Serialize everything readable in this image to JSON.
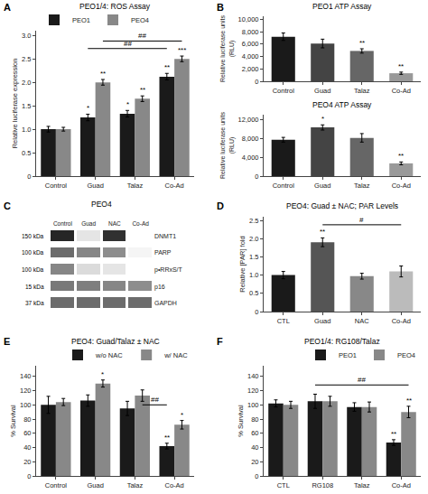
{
  "chart_data": [
    {
      "type": "bar",
      "panel_label": "A",
      "title": "PEO1/4: ROS Assay",
      "categories": [
        "Control",
        "Guad",
        "Talaz",
        "Co-Ad"
      ],
      "series": [
        {
          "name": "PEO1",
          "color": "#1a1a1a",
          "values": [
            1.0,
            1.25,
            1.33,
            2.12
          ],
          "errors": [
            0.06,
            0.07,
            0.07,
            0.07
          ]
        },
        {
          "name": "PEO4",
          "color": "#888888",
          "values": [
            1.0,
            2.0,
            1.65,
            2.5
          ],
          "errors": [
            0.04,
            0.06,
            0.06,
            0.06
          ]
        }
      ],
      "ylabel": "Relative luciferase expression",
      "ylim": [
        0,
        3.1
      ],
      "yticks": [
        0,
        0.5,
        {
          "value": 1.0,
          "label": "1.0"
        },
        1.5,
        {
          "value": 2.0,
          "label": "2.0"
        },
        2.5,
        {
          "value": 3.0,
          "label": "3.0"
        }
      ],
      "grid": false,
      "legend": "upper left",
      "annotations": [
        {
          "text": "*",
          "category": "Guad",
          "series": "PEO1"
        },
        {
          "text": "*",
          "category": "Talaz",
          "series": "PEO1"
        },
        {
          "text": "**",
          "category": "Co-Ad",
          "series": "PEO1"
        },
        {
          "text": "**",
          "category": "Guad",
          "series": "PEO4"
        },
        {
          "text": "**",
          "category": "Talaz",
          "series": "PEO4"
        },
        {
          "text": "***",
          "category": "Co-Ad",
          "series": "PEO4"
        },
        {
          "text": "##",
          "y": 2.72,
          "from": {
            "category": "Guad",
            "series": "PEO1"
          },
          "to": {
            "category": "Co-Ad",
            "series": "PEO1"
          }
        },
        {
          "text": "##",
          "y": 2.88,
          "from": {
            "category": "Guad",
            "series": "PEO4"
          },
          "to": {
            "category": "Co-Ad",
            "series": "PEO4"
          }
        }
      ]
    },
    {
      "type": "bar",
      "panel_label": "B",
      "title": "PEO1 ATP Assay",
      "categories": [
        "Control",
        "Guad",
        "Talaz",
        "Co-Ad"
      ],
      "values": [
        7200,
        6100,
        4900,
        1300
      ],
      "errors": [
        600,
        700,
        350,
        180
      ],
      "colors": [
        "#1a1a1a",
        "#444444",
        "#666666",
        "#999999"
      ],
      "ylabel": "Relative luciferase units\n(RLU)",
      "ylim": [
        0,
        10500
      ],
      "yticks": [
        0,
        {
          "value": 2000,
          "label": "2,000"
        },
        {
          "value": 4000,
          "label": "4,000"
        },
        {
          "value": 6000,
          "label": "6,000"
        },
        {
          "value": 8000,
          "label": "8,000"
        },
        {
          "value": 10000,
          "label": "10,000"
        }
      ],
      "grid": false,
      "annotations": [
        {
          "text": "**",
          "category": "Talaz"
        },
        {
          "text": "**",
          "category": "Co-Ad"
        }
      ]
    },
    {
      "type": "bar",
      "title": "PEO4 ATP Assay",
      "categories": [
        "Control",
        "Guad",
        "Talaz",
        "Co-Ad"
      ],
      "values": [
        7700,
        10300,
        8100,
        2700
      ],
      "errors": [
        500,
        550,
        900,
        300
      ],
      "colors": [
        "#1a1a1a",
        "#444444",
        "#666666",
        "#999999"
      ],
      "ylabel": "Relative luciferase units\n(RLU)",
      "ylim": [
        0,
        13000
      ],
      "yticks": [
        0,
        {
          "value": 4000,
          "label": "4,000"
        },
        {
          "value": 8000,
          "label": "8,000"
        },
        {
          "value": 12000,
          "label": "12,000"
        }
      ],
      "grid": false,
      "annotations": [
        {
          "text": "*",
          "category": "Guad"
        },
        {
          "text": "**",
          "category": "Co-Ad"
        }
      ]
    },
    {
      "type": "heatmap",
      "panel_label": "C",
      "title": "PEO4",
      "x": [
        "Control",
        "Guad",
        "NAC",
        "Co-Ad"
      ],
      "y": [
        "DNMT1",
        "PARP",
        "p•RRxS/T",
        "p16",
        "GAPDH"
      ],
      "values": [
        [
          0.92,
          0.18,
          0.88,
          0.08
        ],
        [
          0.65,
          0.55,
          0.52,
          0.12
        ],
        [
          0.55,
          0.22,
          0.18,
          0.08
        ],
        [
          0.6,
          0.58,
          0.55,
          0.52
        ],
        [
          0.65,
          0.65,
          0.65,
          0.65
        ]
      ],
      "annotations": [
        {
          "text": "150 kDa",
          "row": "DNMT1"
        },
        {
          "text": "100 kDa",
          "row": "PARP"
        },
        {
          "text": "100 kDa",
          "row": "p•RRxS/T"
        },
        {
          "text": "15 kDa",
          "row": "p16"
        },
        {
          "text": "37 kDa",
          "row": "GAPDH"
        }
      ]
    },
    {
      "type": "bar",
      "panel_label": "D",
      "title": "PEO4: Guad ± NAC; PAR Levels",
      "categories": [
        "CTL",
        "Guad",
        "NAC",
        "Co-Ad"
      ],
      "values": [
        1.0,
        1.9,
        0.97,
        1.1
      ],
      "errors": [
        0.1,
        0.12,
        0.08,
        0.15
      ],
      "colors": [
        "#1a1a1a",
        "#555555",
        "#888888",
        "#bbbbbb"
      ],
      "ylabel": "Relative [PAR] fold",
      "ylim": [
        0,
        2.6
      ],
      "yticks": [
        0,
        0.5,
        {
          "value": 1.0,
          "label": "1.0"
        },
        1.5,
        {
          "value": 2.0,
          "label": "2.0"
        },
        2.5
      ],
      "grid": false,
      "annotations": [
        {
          "text": "**",
          "category": "Guad"
        },
        {
          "text": "#",
          "y": 2.38,
          "from": {
            "category": "Guad"
          },
          "to": {
            "category": "Co-Ad"
          }
        }
      ]
    },
    {
      "type": "bar",
      "panel_label": "E",
      "title": "PEO4: Guad/Talaz ± NAC",
      "categories": [
        "Control",
        "Guad",
        "Talaz",
        "Co-Ad"
      ],
      "series": [
        {
          "name": "w/o NAC",
          "color": "#1a1a1a",
          "values": [
            100,
            106,
            95,
            42
          ],
          "errors": [
            12,
            8,
            10,
            4
          ]
        },
        {
          "name": "w/ NAC",
          "color": "#888888",
          "values": [
            104,
            130,
            113,
            72
          ],
          "errors": [
            5,
            5,
            8,
            6
          ]
        }
      ],
      "ylabel": "% Survival",
      "ylim": [
        0,
        155
      ],
      "yticks": [
        0,
        20,
        40,
        60,
        80,
        100,
        120,
        140
      ],
      "grid": false,
      "legend": "upper right",
      "annotations": [
        {
          "text": "**",
          "category": "Co-Ad",
          "series": "w/o NAC"
        },
        {
          "text": "*",
          "category": "Guad",
          "series": "w/ NAC"
        },
        {
          "text": "*",
          "category": "Co-Ad",
          "series": "w/ NAC"
        },
        {
          "text": "##",
          "y": 100,
          "from": {
            "category": "Talaz",
            "series": "w/ NAC"
          },
          "to": {
            "category": "Co-Ad",
            "series": "w/o NAC"
          }
        }
      ]
    },
    {
      "type": "bar",
      "panel_label": "F",
      "title": "PEO1/4: RG108/Talaz",
      "categories": [
        "CTL",
        "RG108",
        "Talaz",
        "Co-Ad"
      ],
      "series": [
        {
          "name": "PEO1",
          "color": "#1a1a1a",
          "values": [
            102,
            105,
            97,
            47
          ],
          "errors": [
            5,
            10,
            6,
            4
          ]
        },
        {
          "name": "PEO4",
          "color": "#888888",
          "values": [
            100,
            105,
            97,
            90
          ],
          "errors": [
            5,
            7,
            7,
            8
          ]
        }
      ],
      "ylabel": "% Survival",
      "ylim": [
        0,
        155
      ],
      "yticks": [
        0,
        20,
        40,
        60,
        80,
        100,
        120,
        140
      ],
      "grid": false,
      "legend": "upper right",
      "annotations": [
        {
          "text": "**",
          "category": "Co-Ad",
          "series": "PEO1"
        },
        {
          "text": "**",
          "category": "Co-Ad",
          "series": "PEO4"
        },
        {
          "text": "##",
          "y": 128,
          "from": {
            "category": "RG108",
            "series": "PEO1"
          },
          "to": {
            "category": "Co-Ad",
            "series": "PEO4"
          }
        }
      ]
    }
  ]
}
